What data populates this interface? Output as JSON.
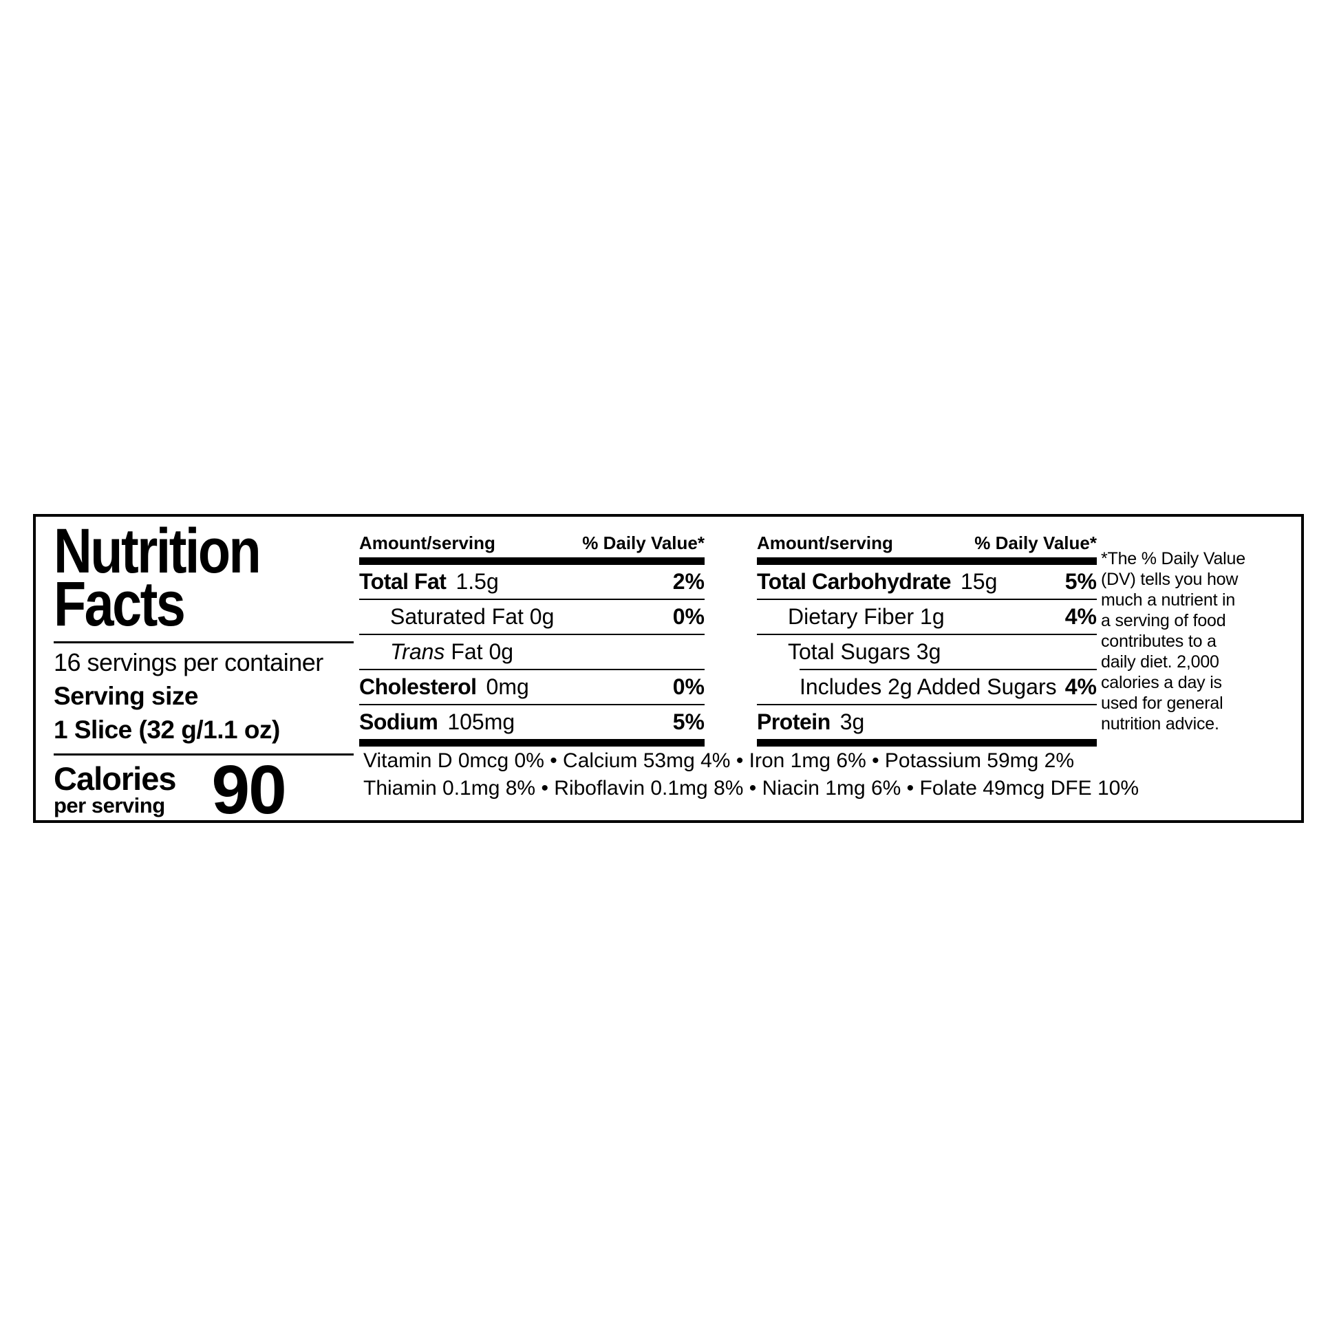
{
  "colors": {
    "ink": "#000000",
    "paper": "#ffffff"
  },
  "label": {
    "title": "Nutrition\nFacts",
    "servings_per_container": "16 servings per container",
    "serving_size_label": "Serving size",
    "serving_size_value": "1 Slice (32 g/1.1 oz)",
    "calories_label": "Calories",
    "calories_sublabel": "per serving",
    "calories_value": "90"
  },
  "cols": [
    {
      "header_amount": "Amount/serving",
      "header_dv": "% Daily Value*",
      "rows": [
        {
          "b": "Total Fat",
          "n": "1.5g",
          "dv": "2%"
        },
        {
          "plain": "Saturated Fat 0g",
          "dv": "0%"
        },
        {
          "i": "Trans",
          "plain": " Fat 0g",
          "dv": ""
        },
        {
          "b": "Cholesterol",
          "n": "0mg",
          "dv": "0%"
        },
        {
          "b": "Sodium",
          "n": "105mg",
          "dv": "5%"
        }
      ]
    },
    {
      "header_amount": "Amount/serving",
      "header_dv": "% Daily Value*",
      "rows": [
        {
          "b": "Total Carbohydrate",
          "n": "15g",
          "dv": "5%"
        },
        {
          "plain": "Dietary Fiber 1g",
          "dv": "4%"
        },
        {
          "plain": "Total Sugars 3g",
          "dv": ""
        },
        {
          "plain": "Includes 2g Added Sugars",
          "dv": "4%"
        },
        {
          "b": "Protein",
          "n": "3g",
          "dv": ""
        }
      ]
    }
  ],
  "micronutrients": {
    "line1": "Vitamin D 0mcg 0% • Calcium 53mg 4% • Iron 1mg 6% • Potassium 59mg 2%",
    "line2": "Thiamin 0.1mg 8% • Riboflavin 0.1mg 8% • Niacin 1mg 6% • Folate 49mcg DFE 10%"
  },
  "footnote": "*The % Daily Value\n(DV) tells you how\nmuch a nutrient in\na serving of food\ncontributes to a\ndaily diet. 2,000\ncalories a day is\nused for general\nnutrition advice."
}
